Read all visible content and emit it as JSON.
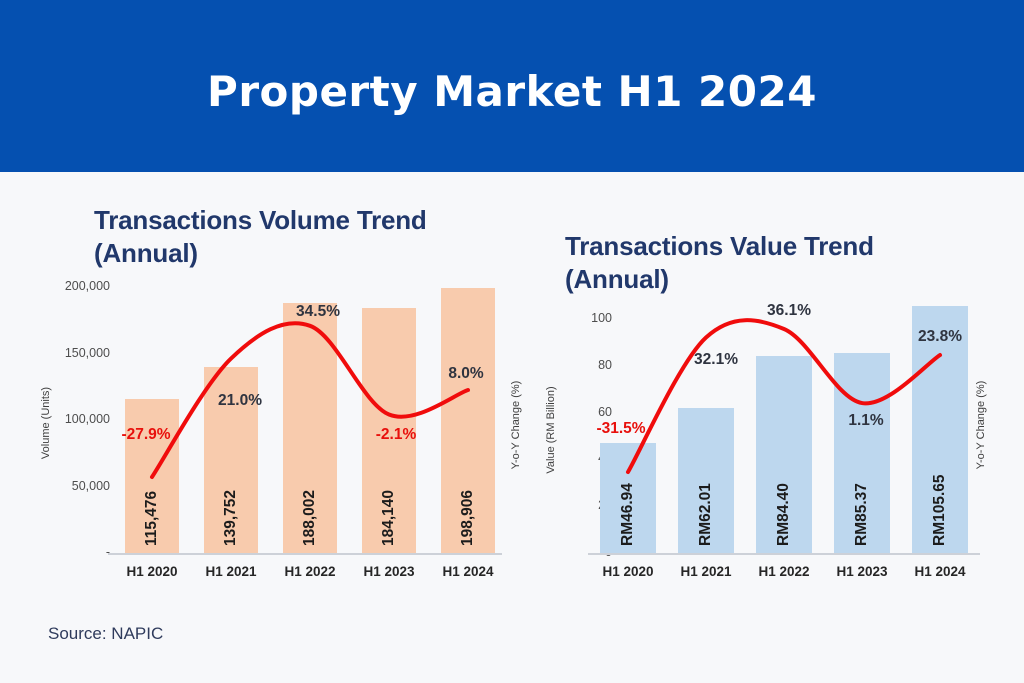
{
  "header": {
    "title": "Property Market H1 2024"
  },
  "source": {
    "label": "Source: NAPIC"
  },
  "colors": {
    "header_bg": "#0550B0",
    "header_text": "#FFFFFF",
    "background": "#F7F8FA",
    "title_navy": "#21386B",
    "pct_dark": "#2F3440",
    "pct_negative": "#E8100C",
    "bar_value_text": "#1C1C1C",
    "tick_text": "#4D4D4D",
    "x_label_text": "#262626",
    "axis_line": "#CDD1D8",
    "axis_label_text": "#3F3F3F",
    "source_text": "#2F3B5C",
    "volume_bar": "#F8CBAD",
    "value_bar": "#BDD7EE",
    "line_red": "#F00C0C"
  },
  "chart_data": [
    {
      "type": "bar",
      "title_lines": [
        "Transactions Volume Trend",
        "(Annual)"
      ],
      "categories": [
        "H1 2020",
        "H1 2021",
        "H1 2022",
        "H1 2023",
        "H1 2024"
      ],
      "series": [
        {
          "name": "Volume (Units)",
          "type": "bar",
          "color": "#F8CBAD",
          "values": [
            115476,
            139752,
            188002,
            184140,
            198906
          ],
          "labels": [
            "115,476",
            "139,752",
            "188,002",
            "184,140",
            "198,906"
          ]
        },
        {
          "name": "Y-o-Y Change (%)",
          "type": "line",
          "color": "#F00C0C",
          "values": [
            -27.9,
            21.0,
            34.5,
            -2.1,
            8.0
          ],
          "labels": [
            "-27.9%",
            "21.0%",
            "34.5%",
            "-2.1%",
            "8.0%"
          ]
        }
      ],
      "ylabel_left": "Volume (Units)",
      "ylabel_right": "Y-o-Y  Change (%)",
      "y_ticks": [
        {
          "label": "200,000",
          "value": 200000
        },
        {
          "label": "150,000",
          "value": 150000
        },
        {
          "label": "100,000",
          "value": 100000
        },
        {
          "label": "50,000",
          "value": 50000
        },
        {
          "label": "-",
          "value": 0
        }
      ],
      "ylim": [
        0,
        200000
      ],
      "grid": false,
      "legend": "none"
    },
    {
      "type": "bar",
      "title_lines": [
        "Transactions Value Trend",
        "(Annual)"
      ],
      "categories": [
        "H1 2020",
        "H1 2021",
        "H1 2022",
        "H1 2023",
        "H1 2024"
      ],
      "series": [
        {
          "name": "Value (RM Billion)",
          "type": "bar",
          "color": "#BDD7EE",
          "values": [
            46.94,
            62.01,
            84.4,
            85.37,
            105.65
          ],
          "labels": [
            "RM46.94",
            "RM62.01",
            "RM84.40",
            "RM85.37",
            "RM105.65"
          ]
        },
        {
          "name": "Y-o-Y Change (%)",
          "type": "line",
          "color": "#F00C0C",
          "values": [
            -31.5,
            32.1,
            36.1,
            1.1,
            23.8
          ],
          "labels": [
            "-31.5%",
            "32.1%",
            "36.1%",
            "1.1%",
            "23.8%"
          ]
        }
      ],
      "ylabel_left": "Value (RM Billion)",
      "ylabel_right": "Y-o-Y  Change (%)",
      "y_ticks": [
        {
          "label": "100",
          "value": 100
        },
        {
          "label": "80",
          "value": 80
        },
        {
          "label": "60",
          "value": 60
        },
        {
          "label": "40",
          "value": 40
        },
        {
          "label": "20",
          "value": 20
        },
        {
          "label": "0",
          "value": 0
        }
      ],
      "ylim": [
        0,
        110
      ],
      "grid": false,
      "legend": "none"
    }
  ]
}
